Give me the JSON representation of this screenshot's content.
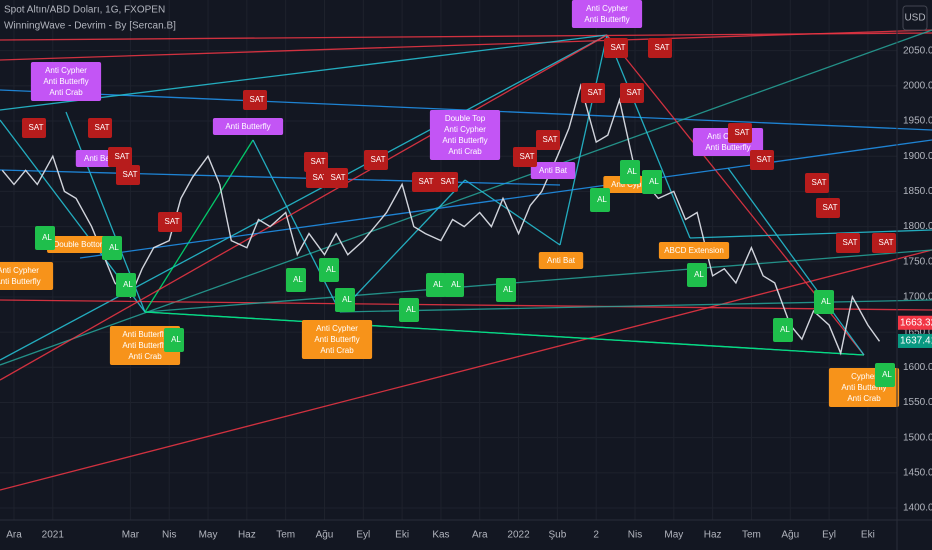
{
  "chart_data": {
    "type": "line",
    "title": "Spot Altın/ABD Doları, 1G, FXOPEN",
    "subtitle": "WinningWave - Devrim - By [Sercan.B]",
    "currency_button": "USD",
    "series": [
      {
        "name": "Spot Altın/ABD Doları",
        "color": "#d1d4dc",
        "x": [
          -0.3,
          0,
          0.3,
          0.6,
          1,
          1.3,
          1.6,
          2,
          2.3,
          2.6,
          3,
          3.3,
          3.6,
          4,
          4.3,
          4.6,
          5,
          5.3,
          5.6,
          6,
          6.3,
          6.6,
          7,
          7.3,
          7.6,
          8,
          8.3,
          8.6,
          9,
          9.3,
          9.6,
          10,
          10.3,
          10.6,
          11,
          11.3,
          11.6,
          12,
          12.3,
          12.6,
          13,
          13.3,
          13.6,
          14,
          14.3,
          14.6,
          15,
          15.3,
          15.6,
          16,
          16.3,
          16.6,
          17,
          17.3,
          17.6,
          18,
          18.3,
          18.6,
          19,
          19.3,
          19.6,
          20,
          20.3,
          20.6,
          21,
          21.3,
          21.6,
          22,
          22.3
        ],
        "values": [
          1880,
          1860,
          1880,
          1860,
          1900,
          1850,
          1840,
          1800,
          1760,
          1720,
          1700,
          1740,
          1770,
          1780,
          1840,
          1870,
          1900,
          1860,
          1780,
          1770,
          1810,
          1800,
          1820,
          1760,
          1790,
          1760,
          1790,
          1760,
          1780,
          1800,
          1820,
          1860,
          1800,
          1790,
          1780,
          1810,
          1800,
          1820,
          1800,
          1840,
          1790,
          1830,
          1850,
          1900,
          1940,
          2000,
          1920,
          1930,
          1980,
          1880,
          1860,
          1840,
          1850,
          1810,
          1820,
          1730,
          1740,
          1720,
          1770,
          1730,
          1720,
          1660,
          1640,
          1680,
          1660,
          1620,
          1700,
          1660,
          1637
        ]
      }
    ],
    "last_prices": [
      {
        "value": 1663.32,
        "color": "#f23645"
      },
      {
        "value": 1637.41,
        "color": "#089981"
      }
    ],
    "xlim": [
      -0.36,
      22.75
    ],
    "xticks": [
      {
        "value": 0,
        "label": "Ara"
      },
      {
        "value": 1,
        "label": "2021"
      },
      {
        "value": 3,
        "label": "Mar"
      },
      {
        "value": 4,
        "label": "Nis"
      },
      {
        "value": 5,
        "label": "May"
      },
      {
        "value": 6,
        "label": "Haz"
      },
      {
        "value": 7,
        "label": "Tem"
      },
      {
        "value": 8,
        "label": "Ağu"
      },
      {
        "value": 9,
        "label": "Eyl"
      },
      {
        "value": 10,
        "label": "Eki"
      },
      {
        "value": 11,
        "label": "Kas"
      },
      {
        "value": 12,
        "label": "Ara"
      },
      {
        "value": 13,
        "label": "2022"
      },
      {
        "value": 14,
        "label": "Şub"
      },
      {
        "value": 15,
        "label": "2"
      },
      {
        "value": 16,
        "label": "Nis"
      },
      {
        "value": 17,
        "label": "May"
      },
      {
        "value": 18,
        "label": "Haz"
      },
      {
        "value": 19,
        "label": "Tem"
      },
      {
        "value": 20,
        "label": "Ağu"
      },
      {
        "value": 21,
        "label": "Eyl"
      },
      {
        "value": 22,
        "label": "Eki"
      }
    ],
    "ylim": [
      1383,
      2122
    ],
    "yticks": [
      {
        "value": 1400,
        "label": "1400.00"
      },
      {
        "value": 1450,
        "label": "1450.00"
      },
      {
        "value": 1500,
        "label": "1500.00"
      },
      {
        "value": 1550,
        "label": "1550.00"
      },
      {
        "value": 1600,
        "label": "1600.00"
      },
      {
        "value": 1650,
        "label": "1650.00"
      },
      {
        "value": 1700,
        "label": "1700.00"
      },
      {
        "value": 1750,
        "label": "1750.00"
      },
      {
        "value": 1800,
        "label": "1800.00"
      },
      {
        "value": 1850,
        "label": "1850.00"
      },
      {
        "value": 1900,
        "label": "1900.00"
      },
      {
        "value": 1950,
        "label": "1950.00"
      },
      {
        "value": 2000,
        "label": "2000.00"
      },
      {
        "value": 2050,
        "label": "2050.00"
      }
    ],
    "grid": true,
    "patterns": [
      {
        "lines": [
          "Anti Cypher",
          "Anti Butterfly",
          "Anti Crab"
        ],
        "color": "#c355f5"
      },
      {
        "lines": [
          "Anti Butterfly"
        ],
        "color": "#c355f5"
      },
      {
        "lines": [
          "Anti Bat"
        ],
        "color": "#c355f5"
      },
      {
        "lines": [
          "Double Top",
          "Anti Cypher",
          "Anti Butterfly",
          "Anti Crab"
        ],
        "color": "#c355f5"
      },
      {
        "lines": [
          "Anti Bat"
        ],
        "color": "#c355f5"
      },
      {
        "lines": [
          "Anti Cypher",
          "Anti Butterfly"
        ],
        "color": "#c355f5"
      },
      {
        "lines": [
          "Anti Cypher",
          "Anti Butterfly"
        ],
        "color": "#c355f5"
      },
      {
        "lines": [
          "Anti Cypher",
          "Anti Butterfly"
        ],
        "color": "#f7931a"
      },
      {
        "lines": [
          "Double Bottom"
        ],
        "color": "#f7931a"
      },
      {
        "lines": [
          "Anti Butterfly",
          "Anti Butterfly",
          "Anti Crab"
        ],
        "color": "#f7931a"
      },
      {
        "lines": [
          "Anti Cypher",
          "Anti Butterfly",
          "Anti Crab"
        ],
        "color": "#f7931a"
      },
      {
        "lines": [
          "Anti Bat"
        ],
        "color": "#f7931a"
      },
      {
        "lines": [
          "Anti Cypher"
        ],
        "color": "#f7931a"
      },
      {
        "lines": [
          "ABCD Extension"
        ],
        "color": "#f7931a"
      },
      {
        "lines": [
          "Cypher",
          "Anti Butterfly",
          "Anti Crab"
        ],
        "color": "#f7931a"
      }
    ],
    "signals": {
      "sell": "SAT",
      "buy": "AL",
      "sell_color": "#b71c1c",
      "buy_color": "#1fbf4c"
    }
  }
}
